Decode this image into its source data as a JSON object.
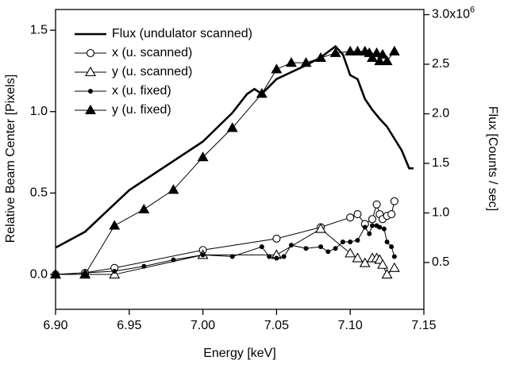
{
  "chart_data": {
    "type": "line",
    "xlabel": "Energy [keV]",
    "ylabel": "Relative Beam Center [Pixels]",
    "y2label": "Flux [Counts / sec]",
    "xlim": [
      6.9,
      7.15
    ],
    "xticks": [
      {
        "value": 6.9,
        "label": "6.90"
      },
      6.95,
      {
        "value": 7.0,
        "label": "7.00"
      },
      7.05,
      {
        "value": 7.1,
        "label": "7.10"
      },
      7.15
    ],
    "ylim": [
      -0.214,
      1.627
    ],
    "yticks": [
      {
        "value": 0,
        "label": "0.0"
      },
      0.5,
      {
        "value": 1,
        "label": "1.0"
      },
      1.5
    ],
    "y2lim": [
      0.028,
      3.052
    ],
    "y2ticks": [
      0.5,
      {
        "value": 1,
        "label": "1.0"
      },
      1.5,
      {
        "value": 2,
        "label": "2.0"
      },
      2.5,
      {
        "value": 3,
        "label": "3.0x10"
      }
    ],
    "y2_exponent": "6",
    "legend": "upper left",
    "series": [
      {
        "name": "Flux (undulator scanned)",
        "color": "#000000",
        "marker": "none",
        "axis": "y2",
        "x": [
          6.9,
          6.92,
          6.95,
          7.0,
          7.02,
          7.03,
          7.035,
          7.04,
          7.05,
          7.07,
          7.08,
          7.09,
          7.095,
          7.1,
          7.105,
          7.11,
          7.115,
          7.12,
          7.125,
          7.13,
          7.135,
          7.14,
          7.143
        ],
        "values": [
          0.65,
          0.81,
          1.23,
          1.72,
          2.01,
          2.2,
          2.25,
          2.2,
          2.35,
          2.49,
          2.57,
          2.68,
          2.6,
          2.39,
          2.35,
          2.15,
          2.04,
          1.95,
          1.87,
          1.75,
          1.63,
          1.45,
          1.45
        ]
      },
      {
        "name": "x (u. scanned)",
        "color": "#000000",
        "marker": "circle-open",
        "x": [
          6.9,
          6.92,
          6.94,
          7.0,
          7.05,
          7.08,
          7.1,
          7.105,
          7.11,
          7.115,
          7.118,
          7.12,
          7.122,
          7.125,
          7.128,
          7.13
        ],
        "values": [
          0.0,
          0.01,
          0.04,
          0.15,
          0.22,
          0.29,
          0.35,
          0.37,
          0.31,
          0.34,
          0.43,
          0.37,
          0.34,
          0.36,
          0.37,
          0.45
        ]
      },
      {
        "name": "y (u. scanned)",
        "color": "#000000",
        "marker": "triangle-open",
        "x": [
          6.9,
          6.92,
          6.94,
          7.0,
          7.05,
          7.08,
          7.1,
          7.105,
          7.11,
          7.115,
          7.118,
          7.12,
          7.122,
          7.125,
          7.13
        ],
        "values": [
          0.0,
          0.0,
          0.0,
          0.12,
          0.12,
          0.28,
          0.13,
          0.1,
          0.07,
          0.1,
          0.1,
          0.09,
          0.06,
          0.0,
          0.04
        ]
      },
      {
        "name": "x (u. fixed)",
        "color": "#000000",
        "marker": "circle-filled",
        "x": [
          6.9,
          6.92,
          6.94,
          6.96,
          6.98,
          7.0,
          7.02,
          7.04,
          7.045,
          7.05,
          7.055,
          7.06,
          7.07,
          7.08,
          7.085,
          7.09,
          7.095,
          7.1,
          7.105,
          7.11,
          7.113,
          7.115,
          7.118,
          7.12,
          7.123,
          7.125,
          7.128,
          7.13
        ],
        "values": [
          0.0,
          0.01,
          0.02,
          0.05,
          0.09,
          0.12,
          0.11,
          0.17,
          0.11,
          0.1,
          0.11,
          0.18,
          0.16,
          0.17,
          0.14,
          0.16,
          0.2,
          0.2,
          0.21,
          0.29,
          0.25,
          0.3,
          0.3,
          0.29,
          0.28,
          0.2,
          0.17,
          0.11
        ]
      },
      {
        "name": "y (u. fixed)",
        "color": "#000000",
        "marker": "triangle-filled",
        "x": [
          6.9,
          6.92,
          6.94,
          6.96,
          6.98,
          7.0,
          7.02,
          7.04,
          7.05,
          7.06,
          7.07,
          7.08,
          7.09,
          7.1,
          7.105,
          7.11,
          7.113,
          7.115,
          7.118,
          7.12,
          7.122,
          7.125,
          7.13
        ],
        "values": [
          0.0,
          0.0,
          0.3,
          0.4,
          0.52,
          0.72,
          0.9,
          1.11,
          1.26,
          1.3,
          1.3,
          1.33,
          1.36,
          1.37,
          1.37,
          1.37,
          1.36,
          1.33,
          1.36,
          1.31,
          1.35,
          1.31,
          1.37
        ]
      }
    ]
  }
}
